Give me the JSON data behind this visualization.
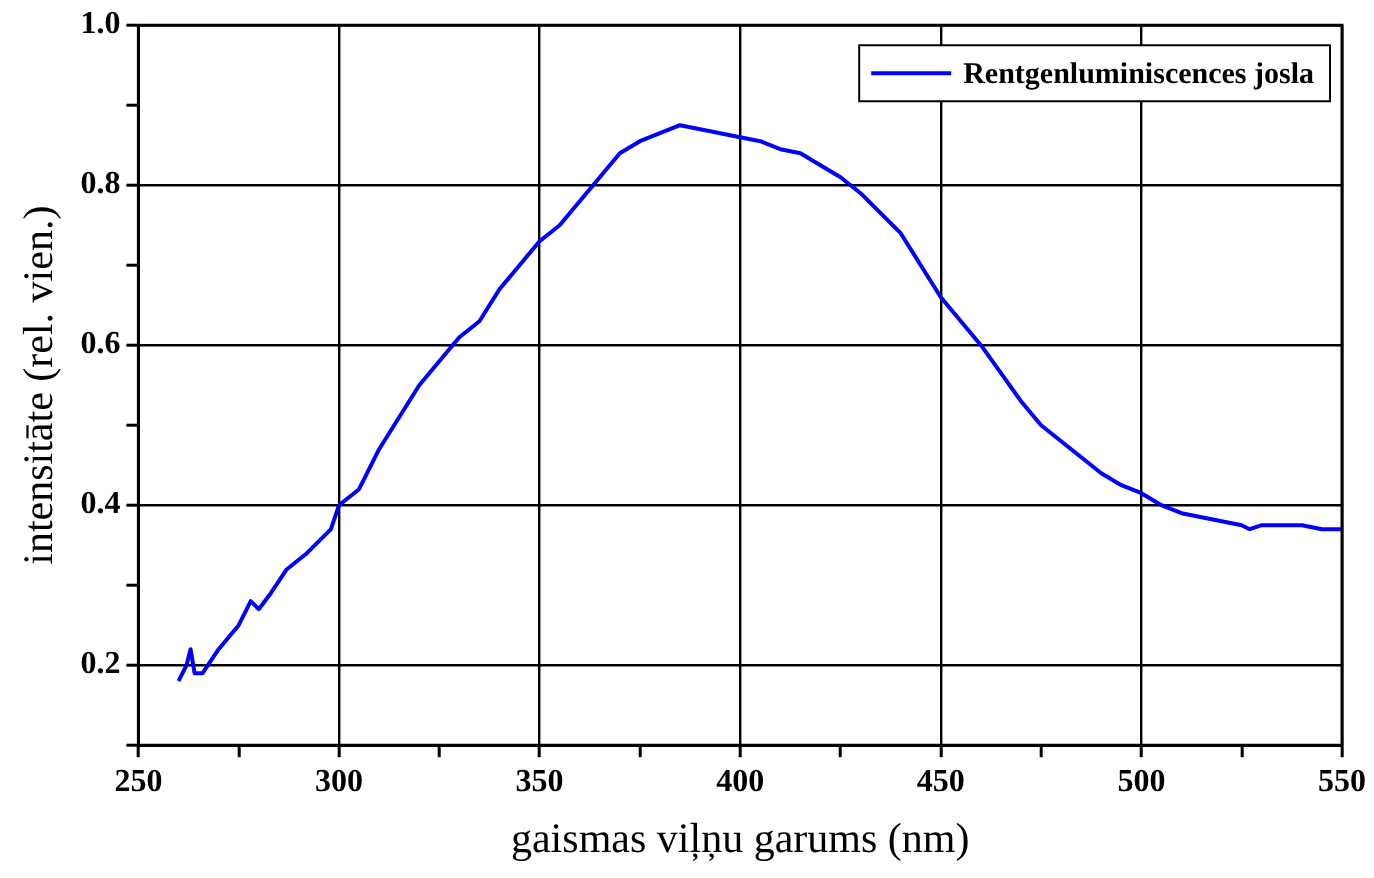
{
  "chart_data": {
    "type": "line",
    "xlabel": "gaismas viļņu garums (nm)",
    "ylabel": "intensitāte (rel. vien.)",
    "x": [
      260,
      262,
      263,
      264,
      266,
      270,
      275,
      278,
      280,
      283,
      287,
      292,
      296,
      298,
      300,
      305,
      310,
      315,
      320,
      325,
      330,
      335,
      340,
      345,
      350,
      355,
      360,
      365,
      370,
      375,
      380,
      385,
      390,
      395,
      400,
      405,
      410,
      415,
      420,
      425,
      430,
      435,
      440,
      445,
      450,
      455,
      460,
      465,
      470,
      475,
      480,
      485,
      490,
      495,
      500,
      505,
      510,
      515,
      520,
      525,
      527,
      530,
      535,
      540,
      545,
      550
    ],
    "series": [
      {
        "name": "Rentgenluminiscences josla",
        "color": "#0000ff",
        "values": [
          0.18,
          0.2,
          0.22,
          0.19,
          0.19,
          0.22,
          0.25,
          0.28,
          0.27,
          0.29,
          0.32,
          0.34,
          0.36,
          0.37,
          0.4,
          0.42,
          0.47,
          0.51,
          0.55,
          0.58,
          0.61,
          0.63,
          0.67,
          0.7,
          0.73,
          0.75,
          0.78,
          0.81,
          0.84,
          0.855,
          0.865,
          0.875,
          0.87,
          0.865,
          0.86,
          0.855,
          0.845,
          0.84,
          0.825,
          0.81,
          0.79,
          0.765,
          0.74,
          0.7,
          0.66,
          0.63,
          0.6,
          0.565,
          0.53,
          0.5,
          0.48,
          0.46,
          0.44,
          0.425,
          0.415,
          0.4,
          0.39,
          0.385,
          0.38,
          0.375,
          0.37,
          0.375,
          0.375,
          0.375,
          0.37,
          0.37
        ]
      }
    ],
    "xlim": [
      250,
      550
    ],
    "xticks": [
      250,
      {
        "value": 275,
        "label": null
      },
      300,
      {
        "value": 325,
        "label": null
      },
      350,
      {
        "value": 375,
        "label": null
      },
      400,
      {
        "value": 425,
        "label": null
      },
      450,
      {
        "value": 475,
        "label": null
      },
      500,
      {
        "value": 525,
        "label": null
      },
      550
    ],
    "ylim": [
      0.1,
      1.0
    ],
    "yticks": [
      {
        "value": 0.1,
        "label": null
      },
      0.2,
      {
        "value": 0.3,
        "label": null
      },
      0.4,
      {
        "value": 0.5,
        "label": null
      },
      0.6,
      {
        "value": 0.7,
        "label": null
      },
      0.8,
      {
        "value": 0.9,
        "label": null
      },
      {
        "value": 1.0,
        "label": "1.0"
      }
    ],
    "grid": true,
    "legend": "top right",
    "marker": "none",
    "line_style": "solid"
  }
}
